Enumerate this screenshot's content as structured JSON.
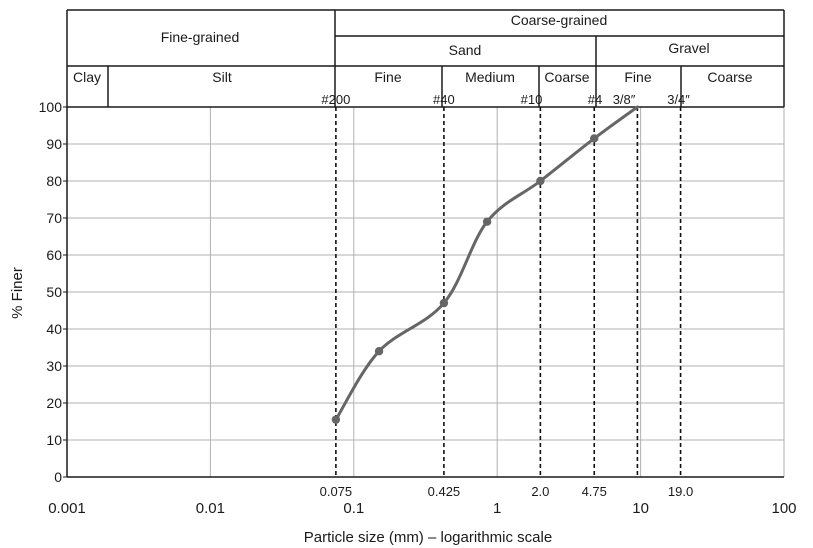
{
  "chart_data": {
    "type": "line",
    "title": "",
    "xlabel": "Particle size (mm) – logarithmic scale",
    "ylabel": "% Finer",
    "x_scale": "log",
    "xlim": [
      0.001,
      100
    ],
    "ylim": [
      0,
      100
    ],
    "x_tick_labels": [
      "0.001",
      "0.01",
      "0.1",
      "1",
      "10",
      "100"
    ],
    "y_tick_labels": [
      "0",
      "10",
      "20",
      "30",
      "40",
      "50",
      "60",
      "70",
      "80",
      "90",
      "100"
    ],
    "grid": true,
    "series": [
      {
        "points": [
          {
            "x": 0.075,
            "y": 15.5
          },
          {
            "x": 0.15,
            "y": 34
          },
          {
            "x": 0.425,
            "y": 47
          },
          {
            "x": 0.85,
            "y": 69
          },
          {
            "x": 2.0,
            "y": 80
          },
          {
            "x": 4.75,
            "y": 91.5
          },
          {
            "x": 9.5,
            "y": 100
          }
        ]
      }
    ],
    "reference_lines": [
      {
        "x": 0.075,
        "sieve": "#200",
        "size_label": "0.075"
      },
      {
        "x": 0.425,
        "sieve": "#40",
        "size_label": "0.425"
      },
      {
        "x": 2.0,
        "sieve": "#10",
        "size_label": "2.0"
      },
      {
        "x": 4.75,
        "sieve": "#4",
        "size_label": "4.75"
      },
      {
        "x": 9.5,
        "sieve": "3/8″",
        "size_label": ""
      },
      {
        "x": 19.0,
        "sieve": "3/4″",
        "size_label": "19.0"
      }
    ],
    "classification_header": {
      "fine_grained": "Fine-grained",
      "coarse_grained": "Coarse-grained",
      "sand": "Sand",
      "gravel": "Gravel",
      "clay": "Clay",
      "silt": "Silt",
      "sand_fine": "Fine",
      "sand_medium": "Medium",
      "sand_coarse": "Coarse",
      "gravel_fine": "Fine",
      "gravel_coarse": "Coarse"
    },
    "colors": {
      "curve": "#666666",
      "grid": "#b0b0b0",
      "axis": "#1a1a1a"
    }
  }
}
